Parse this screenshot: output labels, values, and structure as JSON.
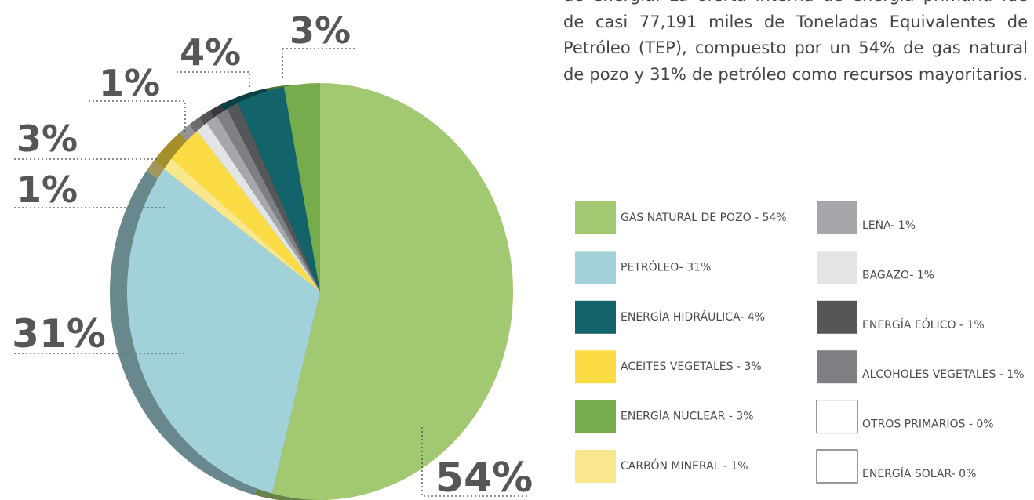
{
  "text": [
    "de energía. La oferta interna de energía primaria fue",
    "de casi 77,191 miles de Toneladas Equivalentes de",
    "Petróleo (TEP), compuesto por un 54% de gas natural",
    "de pozo y 31% de petróleo como recursos mayoritarios."
  ],
  "chart_data": {
    "type": "pie",
    "categories": [
      "GAS NATURAL DE POZO - 54%",
      "PETRÓLEO- 31%",
      "ENERGÍA HIDRÁULICA- 4%",
      "ACEITES VEGETALES - 3%",
      "ENERGÍA NUCLEAR - 3%",
      "CARBÓN MINERAL - 1%",
      "LEÑA- 1%",
      "BAGAZO- 1%",
      "ENERGÍA EÓLICO - 1%",
      "ALCOHOLES VEGETALES - 1%",
      "OTROS PRIMARIOS - 0%",
      "ENERGÍA SOLAR- 0%"
    ],
    "values": [
      54,
      31,
      4,
      3,
      3,
      1,
      1,
      1,
      1,
      1,
      0,
      0
    ],
    "value_labels": [
      "54%",
      "31%",
      "4%",
      "3%",
      "3%",
      "1%",
      "1%",
      null,
      null,
      null,
      null,
      null
    ],
    "colors": [
      "#a3c872",
      "#a2d2d9",
      "#12636a",
      "#fcdc45",
      "#77ac4c",
      "#f9e78e",
      "#a6a7aa",
      "#e3e4e5",
      "#555658",
      "#7e7f82",
      "#ffffff",
      "#ffffff"
    ]
  }
}
